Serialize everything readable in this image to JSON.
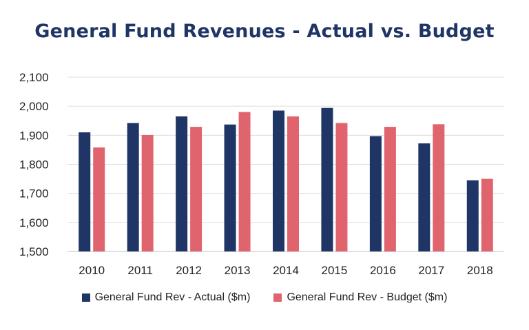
{
  "chart_data": {
    "type": "bar",
    "title": "General Fund Revenues - Actual vs. Budget",
    "xlabel": "",
    "ylabel": "",
    "categories": [
      "2010",
      "2011",
      "2012",
      "2013",
      "2014",
      "2015",
      "2016",
      "2017",
      "2018"
    ],
    "series": [
      {
        "name": "General Fund Rev - Actual ($m)",
        "color": "#1f3566",
        "values": [
          1910,
          1942,
          1965,
          1937,
          1985,
          1994,
          1897,
          1872,
          1745
        ]
      },
      {
        "name": "General Fund Rev - Budget ($m)",
        "color": "#e0646e",
        "values": [
          1858,
          1901,
          1929,
          1980,
          1965,
          1942,
          1929,
          1938,
          1750
        ]
      }
    ],
    "ylim": [
      1500,
      2100
    ],
    "yticks": [
      "1,500",
      "1,600",
      "1,700",
      "1,800",
      "1,900",
      "2,000",
      "2,100"
    ],
    "ytick_values": [
      1500,
      1600,
      1700,
      1800,
      1900,
      2000,
      2100
    ],
    "grid": true,
    "legend_position": "bottom"
  }
}
